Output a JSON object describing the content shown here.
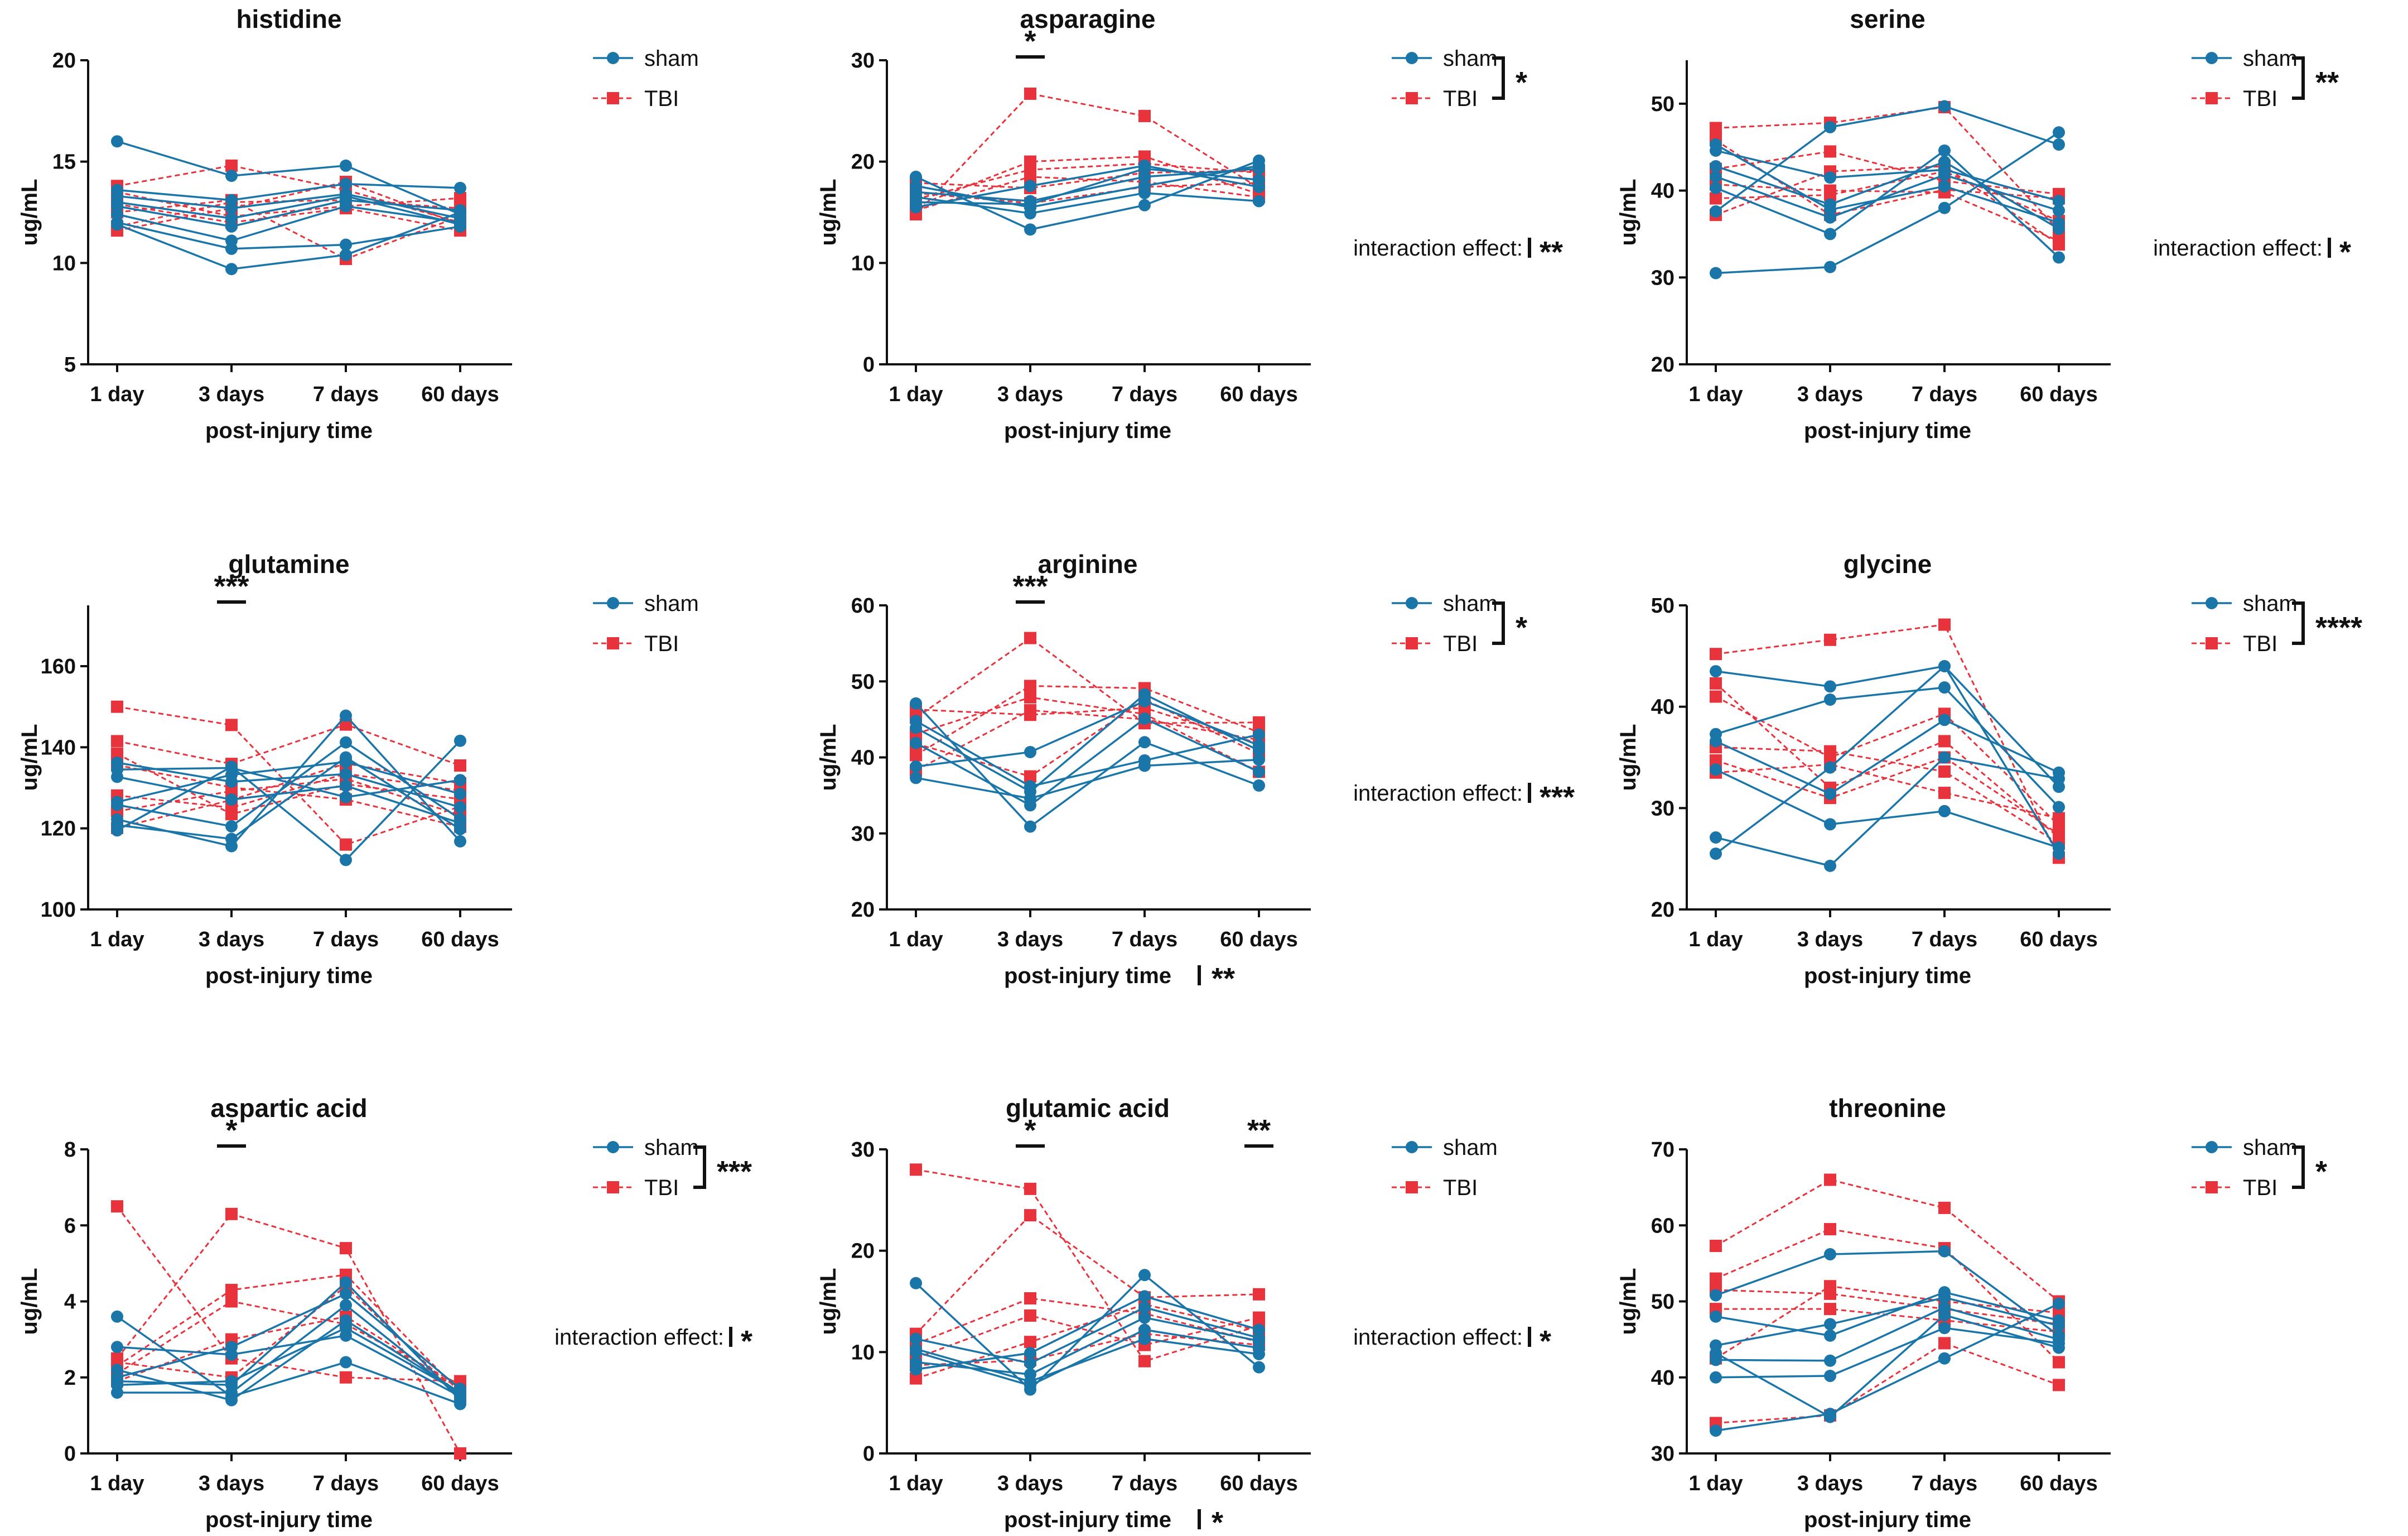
{
  "x_categories": [
    "1 day",
    "3 days",
    "7 days",
    "60 days"
  ],
  "xlabel": "post-injury time",
  "ylabel": "ug/mL",
  "legend": {
    "sham": "sham",
    "tbi": "TBI"
  },
  "colors": {
    "sham": "#1a75a8",
    "tbi": "#e8323c"
  },
  "interaction_label": "interaction effect:",
  "chart_data": [
    {
      "type": "line",
      "title": "histidine",
      "ylim": [
        5,
        20
      ],
      "yticks": [
        5,
        10,
        15,
        20
      ],
      "sham": [
        [
          16,
          14.3,
          14.8,
          12.4
        ],
        [
          13.6,
          13.1,
          13.9,
          13.7
        ],
        [
          13.3,
          12.7,
          13.4,
          12.2
        ],
        [
          12.8,
          11.8,
          13.1,
          12.6
        ],
        [
          12.4,
          11.1,
          12.8,
          12.0
        ],
        [
          12.0,
          10.7,
          10.9,
          11.8
        ],
        [
          11.9,
          9.7,
          10.4,
          12.5
        ],
        [
          13.0,
          12.2,
          13.3,
          11.9
        ]
      ],
      "tbi": [
        [
          13.8,
          14.8,
          13.6,
          12.0
        ],
        [
          13.5,
          12.3,
          12.8,
          13.2
        ],
        [
          12.9,
          12.0,
          12.7,
          11.6
        ],
        [
          12.5,
          13.1,
          10.2,
          12.3
        ],
        [
          11.6,
          12.7,
          14.0,
          11.9
        ],
        [
          11.8,
          13.0,
          13.1,
          12.7
        ]
      ],
      "legend_sig": "",
      "interaction_sig": "",
      "time_sig": "",
      "point_sigs": []
    },
    {
      "type": "line",
      "title": "asparagine",
      "ylim": [
        0,
        30
      ],
      "yticks": [
        0,
        10,
        20,
        30
      ],
      "sham": [
        [
          18.5,
          13.3,
          15.7,
          20.1
        ],
        [
          17.6,
          15.5,
          17.6,
          19.6
        ],
        [
          17.0,
          16.1,
          18.5,
          19.3
        ],
        [
          16.5,
          14.9,
          16.9,
          16.1
        ],
        [
          16.0,
          15.8,
          19.3,
          18.2
        ],
        [
          15.5,
          17.6,
          19.6,
          17.5
        ]
      ],
      "tbi": [
        [
          14.8,
          26.7,
          24.5,
          17.4
        ],
        [
          15.6,
          20.0,
          20.5,
          16.8
        ],
        [
          16.3,
          19.2,
          19.8,
          18.9
        ],
        [
          17.9,
          17.4,
          18.9,
          19.1
        ],
        [
          16.9,
          15.9,
          17.5,
          17.9
        ],
        [
          15.2,
          18.5,
          18.0,
          16.5
        ]
      ],
      "legend_sig": "*",
      "interaction_sig": "**",
      "time_sig": "",
      "point_sigs": [
        {
          "x": "3 days",
          "label": "*"
        }
      ]
    },
    {
      "type": "line",
      "title": "serine",
      "ylim": [
        20,
        55
      ],
      "yticks": [
        20,
        30,
        40,
        50
      ],
      "sham": [
        [
          30.5,
          31.2,
          38.0,
          46.7
        ],
        [
          37.6,
          47.3,
          49.7,
          45.3
        ],
        [
          40.3,
          35.0,
          44.6,
          32.3
        ],
        [
          41.6,
          36.9,
          41.8,
          37.7
        ],
        [
          42.8,
          38.4,
          43.3,
          35.6
        ],
        [
          44.6,
          41.5,
          42.4,
          38.8
        ],
        [
          45.3,
          37.8,
          40.5,
          36.3
        ]
      ],
      "tbi": [
        [
          47.2,
          47.8,
          49.6,
          35.4
        ],
        [
          37.2,
          42.2,
          42.8,
          33.8
        ],
        [
          42.5,
          44.5,
          41.1,
          39.6
        ],
        [
          40.7,
          40.0,
          39.8,
          34.2
        ],
        [
          39.1,
          39.5,
          42.2,
          36.5
        ],
        [
          45.8,
          37.2,
          40.1,
          39.1
        ]
      ],
      "legend_sig": "**",
      "interaction_sig": "*",
      "time_sig": "",
      "point_sigs": []
    },
    {
      "type": "line",
      "title": "glutamine",
      "ylim": [
        100,
        175
      ],
      "yticks": [
        100,
        120,
        140,
        160
      ],
      "sham": [
        [
          119.5,
          135.2,
          112.2,
          141.6
        ],
        [
          122.2,
          115.6,
          147.8,
          116.8
        ],
        [
          125.8,
          120.5,
          141.2,
          122.3
        ],
        [
          126.5,
          133.2,
          136.4,
          128.5
        ],
        [
          132.7,
          127.1,
          130.5,
          121.3
        ],
        [
          134.5,
          134.9,
          127.7,
          131.9
        ],
        [
          136.2,
          131.5,
          133.4,
          125.2
        ],
        [
          120.8,
          117.4,
          137.5,
          119.8
        ]
      ],
      "tbi": [
        [
          150.0,
          145.5,
          116.0,
          125.4
        ],
        [
          141.5,
          135.9,
          145.6,
          135.5
        ],
        [
          138.4,
          123.5,
          130.9,
          127.2
        ],
        [
          135.6,
          130.1,
          127.1,
          120.4
        ],
        [
          128.1,
          125.1,
          133.5,
          129.3
        ],
        [
          124.2,
          129.2,
          132.2,
          123.3
        ],
        [
          120.1,
          127.0,
          136.0,
          131.1
        ]
      ],
      "legend_sig": "",
      "interaction_sig": "",
      "time_sig": "",
      "point_sigs": [
        {
          "x": "3 days",
          "label": "***"
        }
      ]
    },
    {
      "type": "line",
      "title": "arginine",
      "ylim": [
        20,
        60
      ],
      "yticks": [
        20,
        30,
        40,
        50,
        60
      ],
      "sham": [
        [
          47.1,
          30.9,
          42.0,
          36.3
        ],
        [
          43.9,
          35.5,
          48.3,
          40.9
        ],
        [
          41.9,
          33.7,
          45.1,
          38.1
        ],
        [
          38.8,
          40.7,
          47.4,
          41.6
        ],
        [
          37.3,
          34.6,
          38.9,
          39.7
        ],
        [
          44.8,
          36.2,
          39.6,
          43.0
        ]
      ],
      "tbi": [
        [
          45.2,
          55.7,
          44.5,
          44.6
        ],
        [
          40.3,
          49.4,
          49.1,
          43.3
        ],
        [
          43.1,
          47.9,
          45.7,
          38.1
        ],
        [
          38.3,
          46.2,
          45.0,
          42.3
        ],
        [
          41.8,
          37.5,
          47.6,
          40.5
        ],
        [
          46.3,
          45.6,
          46.5,
          41.8
        ]
      ],
      "legend_sig": "*",
      "interaction_sig": "***",
      "time_sig": "**",
      "point_sigs": [
        {
          "x": "3 days",
          "label": "***"
        }
      ]
    },
    {
      "type": "line",
      "title": "glycine",
      "ylim": [
        20,
        50
      ],
      "yticks": [
        20,
        30,
        40,
        50
      ],
      "sham": [
        [
          43.5,
          42.0,
          44.0,
          25.5
        ],
        [
          37.3,
          40.7,
          41.9,
          30.1
        ],
        [
          36.6,
          31.4,
          38.7,
          33.5
        ],
        [
          33.8,
          28.4,
          29.7,
          26.1
        ],
        [
          27.1,
          24.3,
          35.0,
          32.9
        ],
        [
          25.5,
          34.0,
          44.0,
          32.1
        ]
      ],
      "tbi": [
        [
          45.2,
          46.6,
          48.1,
          25.1
        ],
        [
          41.0,
          35.0,
          39.3,
          28.3
        ],
        [
          42.3,
          32.0,
          36.6,
          27.1
        ],
        [
          34.7,
          31.0,
          35.0,
          27.4
        ],
        [
          33.5,
          34.3,
          31.5,
          29.0
        ],
        [
          36.0,
          35.6,
          33.6,
          26.5
        ]
      ],
      "legend_sig": "****",
      "interaction_sig": "",
      "time_sig": "",
      "point_sigs": []
    },
    {
      "type": "line",
      "title": "aspartic acid",
      "ylim": [
        0,
        8
      ],
      "yticks": [
        0,
        2,
        4,
        6,
        8
      ],
      "sham": [
        [
          3.6,
          1.5,
          2.4,
          1.3
        ],
        [
          2.8,
          2.6,
          3.1,
          1.5
        ],
        [
          2.2,
          1.4,
          3.5,
          1.6
        ],
        [
          1.9,
          1.8,
          4.5,
          1.4
        ],
        [
          1.6,
          1.6,
          3.9,
          1.5
        ],
        [
          2.0,
          2.8,
          4.2,
          1.7
        ],
        [
          1.8,
          1.9,
          3.3,
          1.6
        ]
      ],
      "tbi": [
        [
          6.5,
          2.5,
          2.0,
          1.9
        ],
        [
          2.5,
          6.3,
          5.4,
          0.0
        ],
        [
          2.3,
          4.3,
          4.7,
          1.6
        ],
        [
          2.1,
          4.0,
          3.4,
          1.8
        ],
        [
          2.4,
          2.0,
          4.4,
          1.5
        ],
        [
          1.9,
          3.0,
          3.6,
          1.7
        ]
      ],
      "legend_sig": "***",
      "interaction_sig": "*",
      "time_sig": "",
      "point_sigs": [
        {
          "x": "3 days",
          "label": "*"
        }
      ]
    },
    {
      "type": "line",
      "title": "glutamic acid",
      "ylim": [
        0,
        30
      ],
      "yticks": [
        0,
        10,
        20,
        30
      ],
      "sham": [
        [
          16.8,
          6.3,
          17.6,
          8.5
        ],
        [
          11.3,
          8.9,
          14.4,
          11.4
        ],
        [
          10.3,
          7.1,
          11.3,
          9.8
        ],
        [
          9.0,
          7.8,
          13.4,
          11.1
        ],
        [
          8.3,
          9.9,
          15.5,
          12.2
        ],
        [
          10.0,
          6.7,
          12.2,
          10.4
        ]
      ],
      "tbi": [
        [
          28.0,
          26.1,
          9.1,
          12.6
        ],
        [
          11.8,
          23.5,
          15.4,
          15.7
        ],
        [
          10.8,
          15.3,
          13.8,
          11.0
        ],
        [
          9.4,
          13.6,
          10.7,
          13.4
        ],
        [
          7.4,
          11.0,
          14.7,
          12.1
        ],
        [
          8.7,
          9.2,
          11.8,
          10.7
        ]
      ],
      "legend_sig": "",
      "interaction_sig": "*",
      "time_sig": "*",
      "point_sigs": [
        {
          "x": "3 days",
          "label": "*"
        },
        {
          "x": "60 days",
          "label": "**"
        }
      ]
    },
    {
      "type": "line",
      "title": "threonine",
      "ylim": [
        30,
        70
      ],
      "yticks": [
        30,
        40,
        50,
        60,
        70
      ],
      "sham": [
        [
          33.0,
          35.2,
          42.5,
          49.7
        ],
        [
          40.0,
          40.2,
          46.5,
          44.5
        ],
        [
          42.3,
          42.2,
          49.2,
          45.0
        ],
        [
          44.2,
          47.0,
          50.5,
          46.8
        ],
        [
          48.0,
          45.5,
          51.2,
          47.5
        ],
        [
          50.8,
          56.2,
          56.6,
          45.5
        ],
        [
          43.2,
          34.8,
          48.2,
          43.9
        ]
      ],
      "tbi": [
        [
          57.3,
          66.0,
          62.3,
          50.0
        ],
        [
          53.0,
          59.5,
          57.0,
          42.0
        ],
        [
          34.0,
          35.0,
          44.5,
          39.0
        ],
        [
          42.5,
          52.0,
          50.0,
          48.5
        ],
        [
          49.0,
          49.0,
          47.5,
          46.0
        ],
        [
          51.5,
          51.0,
          49.0,
          47.0
        ]
      ],
      "legend_sig": "*",
      "interaction_sig": "",
      "time_sig": "",
      "point_sigs": []
    }
  ]
}
